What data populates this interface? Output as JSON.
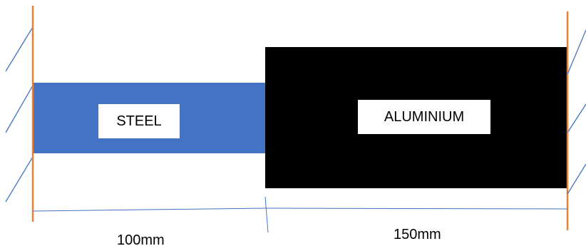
{
  "labels": {
    "steel": "STEEL",
    "aluminium": "ALUMINIUM"
  },
  "dimensions": {
    "steel_length": "100mm",
    "aluminium_length": "150mm"
  },
  "colors": {
    "steel": "#4472c4",
    "aluminium": "#000000",
    "wall": "#ed7d31",
    "hatch": "#4472c4",
    "dimension_line": "#4472c4"
  }
}
